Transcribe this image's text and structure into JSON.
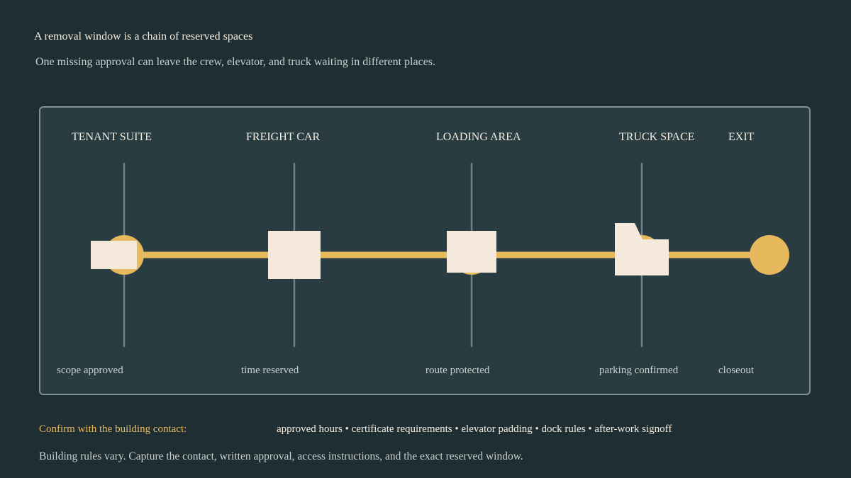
{
  "header": {
    "title": "A removal window is a chain of reserved spaces",
    "subtitle": "One missing approval can leave the crew, elevator, and truck waiting in different places."
  },
  "diagram": {
    "stages": [
      {
        "label": "TENANT SUITE",
        "status": "scope approved"
      },
      {
        "label": "FREIGHT CAR",
        "status": "time reserved"
      },
      {
        "label": "LOADING AREA",
        "status": "route protected"
      },
      {
        "label": "TRUCK SPACE",
        "status": "parking confirmed"
      },
      {
        "label": "EXIT",
        "status": "closeout"
      }
    ],
    "colors": {
      "path": "#e6b95c",
      "block": "#f4e9da",
      "rail": "#6e8187"
    }
  },
  "footer": {
    "confirm_label": "Confirm with the building contact:",
    "items": "approved hours • certificate requirements • elevator padding • dock rules • after-work signoff",
    "note": "Building rules vary. Capture the contact, written approval, access instructions, and the exact reserved window."
  }
}
